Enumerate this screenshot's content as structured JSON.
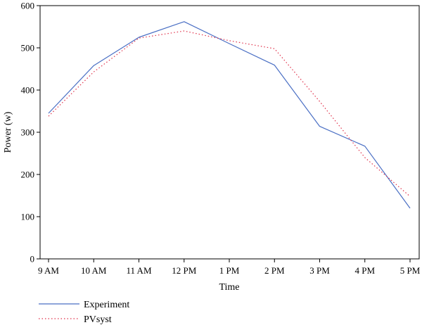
{
  "chart_data": {
    "type": "line",
    "title": "",
    "xlabel": "Time",
    "ylabel": "Power (w)",
    "categories": [
      "9 AM",
      "10 AM",
      "11 AM",
      "12 PM",
      "1 PM",
      "2 PM",
      "3 PM",
      "4 PM",
      "5 PM"
    ],
    "ylim": [
      0,
      600
    ],
    "yticks": [
      0,
      100,
      200,
      300,
      400,
      500,
      600
    ],
    "grid": false,
    "legend_position": "bottom-left",
    "series": [
      {
        "name": "Experiment",
        "color": "#4a6fc4",
        "style": "solid",
        "values": [
          345,
          458,
          525,
          562,
          510,
          459,
          314,
          267,
          120
        ]
      },
      {
        "name": "PVsyst",
        "color": "#e0314a",
        "style": "dotted",
        "values": [
          338,
          443,
          523,
          540,
          517,
          498,
          373,
          240,
          148
        ]
      }
    ]
  }
}
